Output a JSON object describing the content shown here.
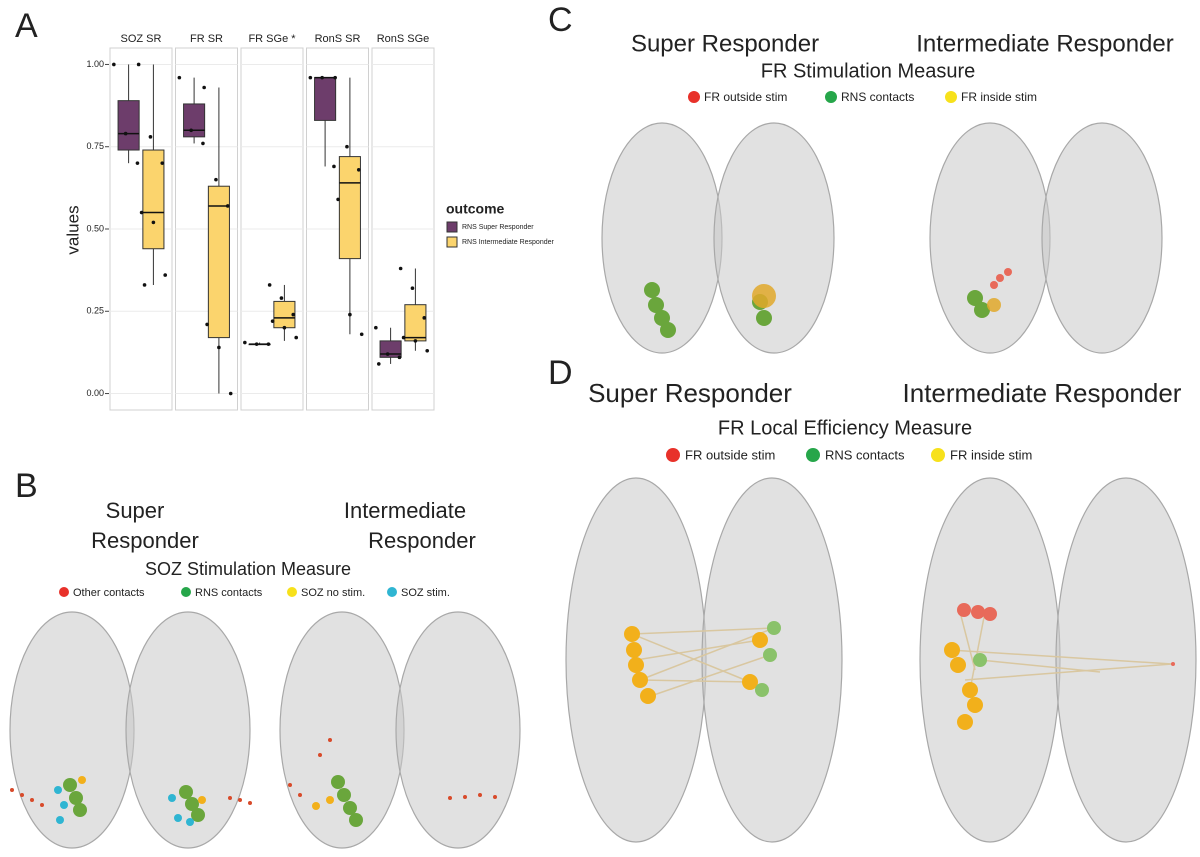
{
  "panels": {
    "a": "A",
    "b": "B",
    "c": "C",
    "d": "D"
  },
  "chart_data": {
    "type": "box",
    "ylabel": "values",
    "facets": [
      "SOZ SR",
      "FR SR",
      "FR SGe *",
      "RonS SR",
      "RonS SGe"
    ],
    "ylim": [
      -0.05,
      1.05
    ],
    "yticks": [
      {
        "value": 0,
        "label": "0.00"
      },
      {
        "value": 0.25,
        "label": "0.25"
      },
      {
        "value": 0.5,
        "label": "0.50"
      },
      {
        "value": 0.75,
        "label": "0.75"
      },
      {
        "value": 1,
        "label": "1.00"
      }
    ],
    "grid": true,
    "legend_title": "outcome",
    "series": [
      {
        "name": "RNS Super Responder",
        "color": "#6d3d6b",
        "boxes": [
          {
            "min": 0.7,
            "q1": 0.74,
            "median": 0.79,
            "q3": 0.89,
            "max": 1.0,
            "points": [
              1.0,
              0.79,
              0.7
            ]
          },
          {
            "min": 0.76,
            "q1": 0.78,
            "median": 0.8,
            "q3": 0.88,
            "max": 0.96,
            "points": [
              0.96,
              0.8,
              0.76
            ]
          },
          {
            "min": 0.15,
            "q1": 0.15,
            "median": 0.15,
            "q3": 0.15,
            "max": 0.155,
            "points": [
              0.155,
              0.15,
              0.15
            ]
          },
          {
            "min": 0.69,
            "q1": 0.83,
            "median": 0.96,
            "q3": 0.96,
            "max": 0.96,
            "points": [
              0.96,
              0.96,
              0.69
            ]
          },
          {
            "min": 0.09,
            "q1": 0.11,
            "median": 0.12,
            "q3": 0.16,
            "max": 0.2,
            "points": [
              0.2,
              0.12,
              0.11,
              0.09
            ]
          }
        ]
      },
      {
        "name": "RNS Intermediate Responder",
        "color": "#fbd46d",
        "boxes": [
          {
            "min": 0.33,
            "q1": 0.44,
            "median": 0.55,
            "q3": 0.74,
            "max": 1.0,
            "points": [
              1.0,
              0.78,
              0.7,
              0.55,
              0.52,
              0.36,
              0.33
            ]
          },
          {
            "min": 0.0,
            "q1": 0.17,
            "median": 0.57,
            "q3": 0.63,
            "max": 0.93,
            "points": [
              0.93,
              0.65,
              0.57,
              0.21,
              0.14,
              0.0
            ]
          },
          {
            "min": 0.16,
            "q1": 0.2,
            "median": 0.23,
            "q3": 0.28,
            "max": 0.33,
            "points": [
              0.33,
              0.29,
              0.24,
              0.22,
              0.2,
              0.17
            ]
          },
          {
            "min": 0.18,
            "q1": 0.41,
            "median": 0.64,
            "q3": 0.72,
            "max": 0.96,
            "points": [
              0.96,
              0.75,
              0.68,
              0.59,
              0.24,
              0.18
            ]
          },
          {
            "min": 0.13,
            "q1": 0.16,
            "median": 0.17,
            "q3": 0.27,
            "max": 0.38,
            "points": [
              0.38,
              0.32,
              0.23,
              0.17,
              0.16,
              0.13
            ]
          }
        ]
      }
    ]
  },
  "panel_b": {
    "super_lines": [
      "Super",
      "Responder"
    ],
    "intermediate_lines": [
      "Intermediate",
      "Responder"
    ],
    "title": "SOZ Stimulation Measure",
    "legend": [
      "Other contacts",
      "RNS contacts",
      "SOZ no stim.",
      "SOZ stim."
    ]
  },
  "panel_c": {
    "super": "Super Responder",
    "intermediate": "Intermediate Responder",
    "title": "FR Stimulation Measure",
    "legend": [
      "FR outside stim",
      "RNS contacts",
      "FR inside stim"
    ]
  },
  "panel_d": {
    "super": "Super Responder",
    "intermediate": "Intermediate Responder",
    "title": "FR Local Efficiency Measure",
    "legend": [
      "FR outside stim",
      "RNS contacts",
      "FR inside stim"
    ]
  }
}
